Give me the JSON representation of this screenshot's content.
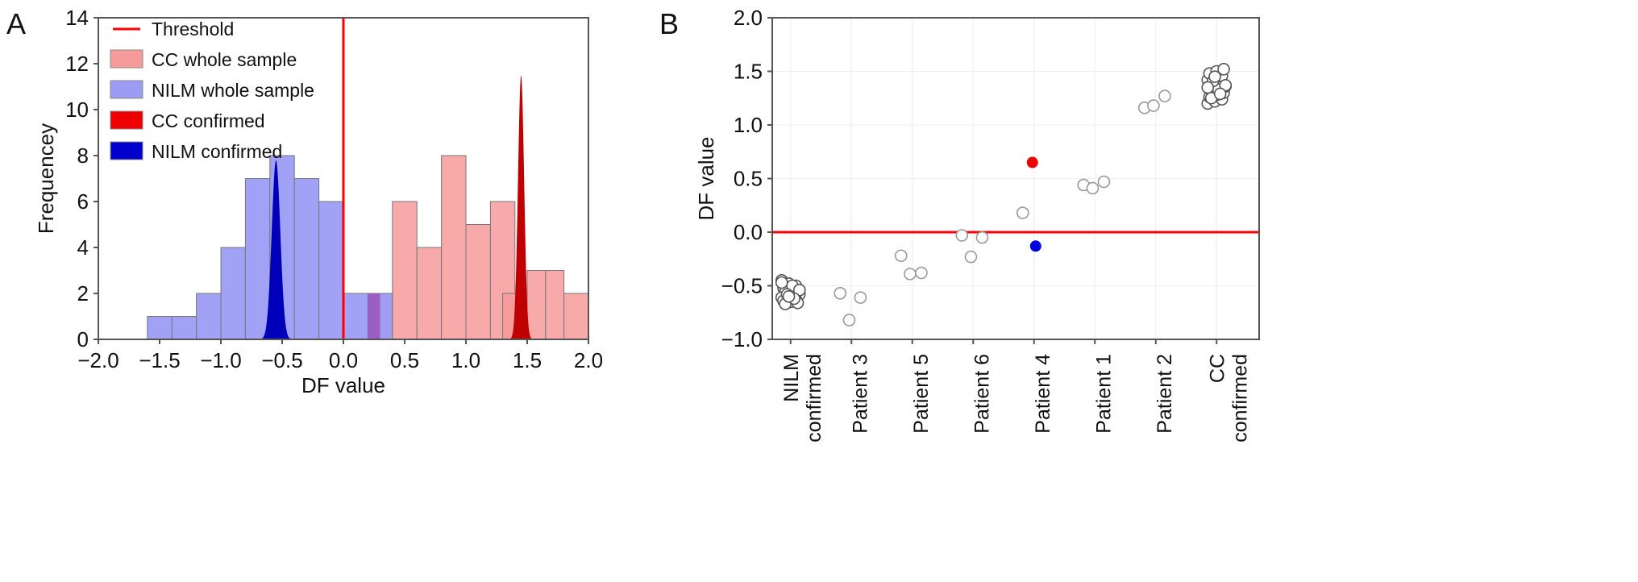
{
  "chart_data": [
    {
      "panel_label": "A",
      "type": "bar",
      "xlabel": "DF value",
      "ylabel": "Frequencey",
      "xlim": [
        -2.0,
        2.0
      ],
      "ylim": [
        0,
        14
      ],
      "xticks": [
        "−2.0",
        "−1.5",
        "−1.0",
        "−0.5",
        "0.0",
        "0.5",
        "1.0",
        "1.5",
        "2.0"
      ],
      "xtick_values": [
        -2.0,
        -1.5,
        -1.0,
        -0.5,
        0.0,
        0.5,
        1.0,
        1.5,
        2.0
      ],
      "yticks": [
        "0",
        "2",
        "4",
        "6",
        "8",
        "10",
        "12",
        "14"
      ],
      "ytick_values": [
        0,
        2,
        4,
        6,
        8,
        10,
        12,
        14
      ],
      "threshold": 0.0,
      "legend_position": "top-left",
      "legend": [
        {
          "label": "Threshold",
          "color": "#ff0000",
          "kind": "line"
        },
        {
          "label": "CC whole sample",
          "color": "#f79a9a",
          "kind": "box"
        },
        {
          "label": "NILM whole sample",
          "color": "#9c9cf5",
          "kind": "box"
        },
        {
          "label": "CC confirmed",
          "color": "#ee0000",
          "kind": "box"
        },
        {
          "label": "NILM confirmed",
          "color": "#0000cc",
          "kind": "box"
        }
      ],
      "series": [
        {
          "name": "NILM whole sample",
          "color": "#9c9cf5",
          "bin_width": 0.2,
          "bin_starts": [
            -1.6,
            -1.4,
            -1.2,
            -1.0,
            -0.8,
            -0.6,
            -0.4,
            -0.2,
            0.0,
            0.2
          ],
          "counts": [
            1,
            1,
            2,
            4,
            7,
            8,
            7,
            6,
            2,
            2
          ]
        },
        {
          "name": "CC whole sample",
          "color": "#f79a9a",
          "bin_width": 0.2,
          "bin_starts": [
            0.2,
            0.4,
            0.6,
            0.8,
            1.0,
            1.2,
            1.3,
            1.5,
            1.65,
            1.8
          ],
          "bin_widths": [
            0.2,
            0.2,
            0.2,
            0.2,
            0.2,
            0.2,
            0.2,
            0.15,
            0.15,
            0.2
          ],
          "counts": [
            2,
            6,
            4,
            8,
            5,
            6,
            2,
            3,
            3,
            2
          ]
        },
        {
          "name": "NILM confirmed",
          "color": "#0000bb",
          "peak_center": -0.55,
          "peak_height": 7.8,
          "spread": 0.035
        },
        {
          "name": "CC confirmed",
          "color": "#c00000",
          "peak_center": 1.45,
          "peak_height": 11.5,
          "spread": 0.025
        }
      ]
    },
    {
      "panel_label": "B",
      "type": "scatter",
      "ylabel": "DF value",
      "ylim": [
        -1.0,
        2.0
      ],
      "yticks": [
        "−1.0",
        "−0.5",
        "0.0",
        "0.5",
        "1.0",
        "1.5",
        "2.0"
      ],
      "ytick_values": [
        -1.0,
        -0.5,
        0.0,
        0.5,
        1.0,
        1.5,
        2.0
      ],
      "threshold": 0.0,
      "categories": [
        {
          "label": [
            "NILM",
            "confirmed"
          ],
          "values": [
            -0.45,
            -0.48,
            -0.5,
            -0.52,
            -0.53,
            -0.55,
            -0.56,
            -0.57,
            -0.58,
            -0.59,
            -0.6,
            -0.61,
            -0.62,
            -0.63,
            -0.64,
            -0.65,
            -0.66,
            -0.67,
            -0.5,
            -0.54,
            -0.58,
            -0.62,
            -0.47,
            -0.6
          ]
        },
        {
          "label": [
            "Patient 3"
          ],
          "values": [
            -0.57,
            -0.61,
            -0.82
          ]
        },
        {
          "label": [
            "Patient 5"
          ],
          "values": [
            -0.22,
            -0.38,
            -0.39
          ]
        },
        {
          "label": [
            "Patient 6"
          ],
          "values": [
            -0.03,
            -0.05,
            -0.23
          ]
        },
        {
          "label": [
            "Patient 4"
          ],
          "values": [
            0.18
          ],
          "highlight": [
            {
              "value": 0.65,
              "color": "#ee0000"
            },
            {
              "value": -0.13,
              "color": "#0000dd"
            }
          ]
        },
        {
          "label": [
            "Patient 1"
          ],
          "values": [
            0.44,
            0.47,
            0.41
          ]
        },
        {
          "label": [
            "Patient 2"
          ],
          "values": [
            1.16,
            1.27,
            1.18
          ]
        },
        {
          "label": [
            "CC",
            "confirmed"
          ],
          "values": [
            1.2,
            1.22,
            1.24,
            1.26,
            1.28,
            1.3,
            1.32,
            1.34,
            1.36,
            1.38,
            1.4,
            1.42,
            1.44,
            1.46,
            1.48,
            1.5,
            1.52,
            1.25,
            1.33,
            1.37,
            1.41,
            1.29,
            1.35,
            1.45
          ]
        }
      ]
    }
  ]
}
